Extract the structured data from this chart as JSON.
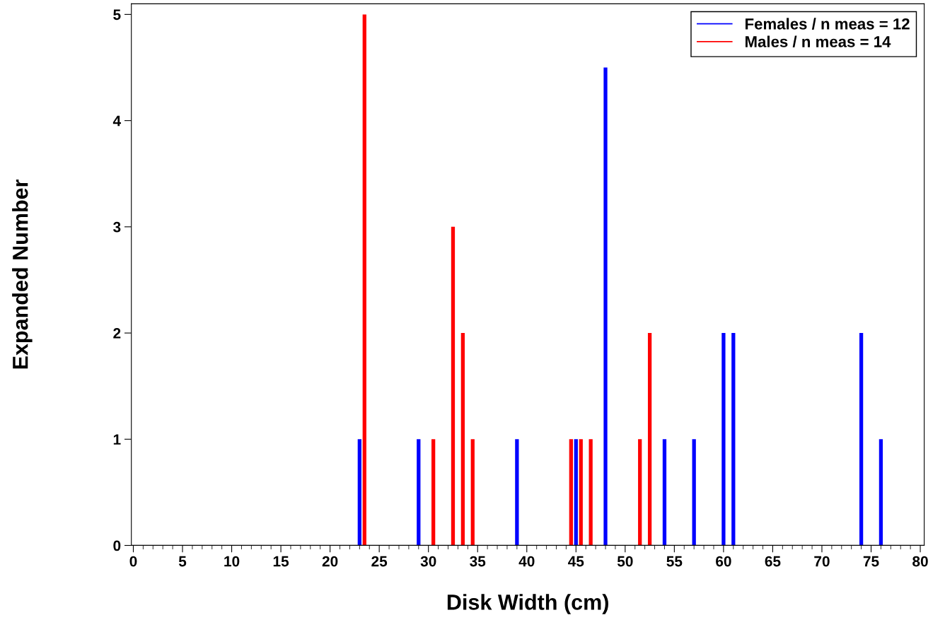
{
  "chart_data": {
    "type": "bar",
    "xlabel": "Disk Width (cm)",
    "ylabel": "Expanded Number",
    "xlim": [
      -0.2,
      80.4
    ],
    "xticks": [
      0,
      5,
      10,
      15,
      20,
      25,
      30,
      35,
      40,
      45,
      50,
      55,
      60,
      65,
      70,
      75,
      80
    ],
    "ylim": [
      0,
      5.1
    ],
    "yticks": [
      0,
      1,
      2,
      3,
      4,
      5
    ],
    "grid": false,
    "legend": "top right",
    "series": [
      {
        "name": "Females / n meas = 12",
        "color": "#0000ff",
        "x": [
          23,
          29,
          39,
          45,
          48,
          54,
          57,
          60,
          61,
          74,
          76
        ],
        "values": [
          1,
          1,
          1,
          1,
          4.5,
          1,
          1,
          2,
          2,
          2,
          1
        ]
      },
      {
        "name": "Males / n meas = 14",
        "color": "#ff0000",
        "x": [
          23.5,
          30.5,
          32.5,
          33.5,
          34.5,
          44.5,
          45.5,
          46.5,
          51.5,
          52.5
        ],
        "values": [
          5,
          1,
          3,
          2,
          1,
          1,
          1,
          1,
          1,
          2
        ]
      }
    ]
  }
}
